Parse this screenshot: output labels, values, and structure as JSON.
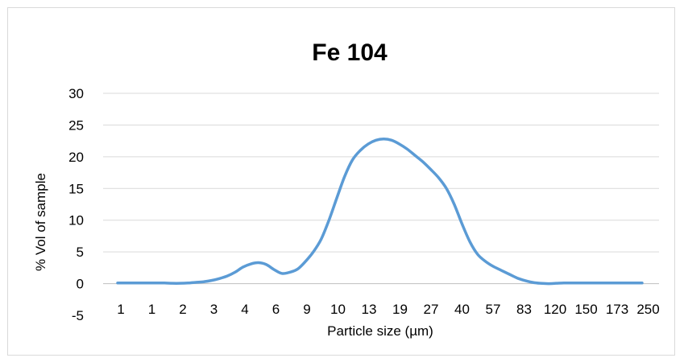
{
  "chart_data": {
    "type": "line",
    "title": "Fe 104",
    "xlabel": "Particle size (µm)",
    "ylabel": "% Vol of sample",
    "ylim": [
      -5,
      30
    ],
    "yticks": [
      -5,
      0,
      5,
      10,
      15,
      20,
      25,
      30
    ],
    "grid": true,
    "legend": "none",
    "x_tick_labels": [
      "1",
      "1",
      "2",
      "3",
      "4",
      "6",
      "9",
      "10",
      "13",
      "19",
      "27",
      "40",
      "57",
      "83",
      "120",
      "150",
      "173",
      "250"
    ],
    "x_tick_every": 2,
    "series": [
      {
        "color": "#5b9bd5",
        "values": [
          0.1,
          0.1,
          0.1,
          0.1,
          0.1,
          0.1,
          0.1,
          0.05,
          0.05,
          0.1,
          0.2,
          0.3,
          0.5,
          0.8,
          1.2,
          1.8,
          2.6,
          3.1,
          3.3,
          3.0,
          2.2,
          1.6,
          1.8,
          2.3,
          3.5,
          5.0,
          7.0,
          10.0,
          13.5,
          16.9,
          19.5,
          21.0,
          22.0,
          22.6,
          22.8,
          22.6,
          22.0,
          21.2,
          20.2,
          19.2,
          18.0,
          16.7,
          15.0,
          12.5,
          9.4,
          6.6,
          4.6,
          3.5,
          2.7,
          2.1,
          1.5,
          0.9,
          0.5,
          0.2,
          0.05,
          0.0,
          0.05,
          0.1,
          0.1,
          0.1,
          0.1,
          0.1,
          0.1,
          0.1,
          0.1,
          0.1,
          0.1,
          0.1
        ]
      }
    ]
  }
}
